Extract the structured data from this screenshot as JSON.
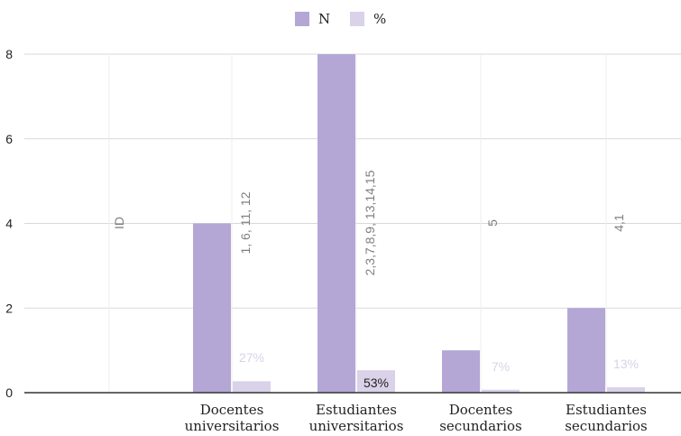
{
  "chart_data": {
    "type": "bar",
    "title": "",
    "xlabel": "",
    "ylabel": "",
    "ylim": [
      0,
      8
    ],
    "yticks": [
      0,
      2,
      4,
      6,
      8
    ],
    "grid": true,
    "legend_position": "top-center",
    "categories": [
      "",
      "Docentes universitarios",
      "Estudiantes universitarios",
      "Docentes secundarios",
      "Estudiantes secundarios"
    ],
    "category_lines": [
      [],
      [
        "Docentes",
        "universitarios"
      ],
      [
        "Estudiantes",
        "universitarios"
      ],
      [
        "Docentes",
        "secundarios"
      ],
      [
        "Estudiantes",
        "secundarios"
      ]
    ],
    "series": [
      {
        "name": "N",
        "color": "#b4a7d6",
        "values": [
          0,
          4,
          8,
          1,
          2
        ]
      },
      {
        "name": "%",
        "color": "#d9d2e9",
        "values": [
          0,
          0.27,
          0.53,
          0.07,
          0.13
        ],
        "labels": [
          "",
          "27%",
          "53%",
          "7%",
          "13%"
        ]
      }
    ],
    "annotations": [
      "ID",
      "1, 6, 11, 12",
      "2,3,7,8,9, 13,14,15",
      "5",
      "4,1"
    ],
    "colors": {
      "n": "#b4a7d6",
      "pct": "#d9d2e9",
      "grid": "#d9d9d9",
      "axis": "#333333",
      "annotation": "#7f7f7f",
      "pct_label_light": "#d9d2e9",
      "pct_label_dark": "#222222"
    }
  }
}
